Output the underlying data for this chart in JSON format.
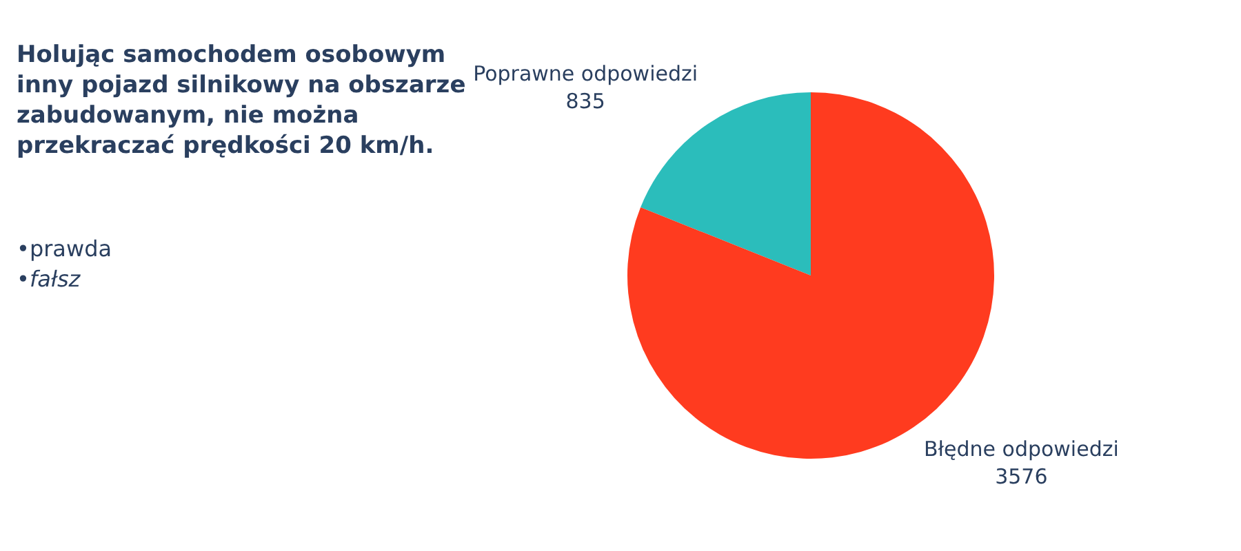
{
  "chart_data": {
    "type": "pie",
    "title": "Holując samochodem osobowym inny pojazd silnikowy na obszarze zabudowanym, nie można przekraczać prędkości 20 km/h.",
    "categories": [
      "Poprawne odpowiedzi",
      "Błędne odpowiedzi"
    ],
    "values": [
      835,
      3576
    ],
    "colors": [
      "#2bbdbb",
      "#ff3b1f"
    ],
    "annotations": [
      "•prawda",
      "•fałsz"
    ],
    "data_labels": true,
    "legend": false
  }
}
